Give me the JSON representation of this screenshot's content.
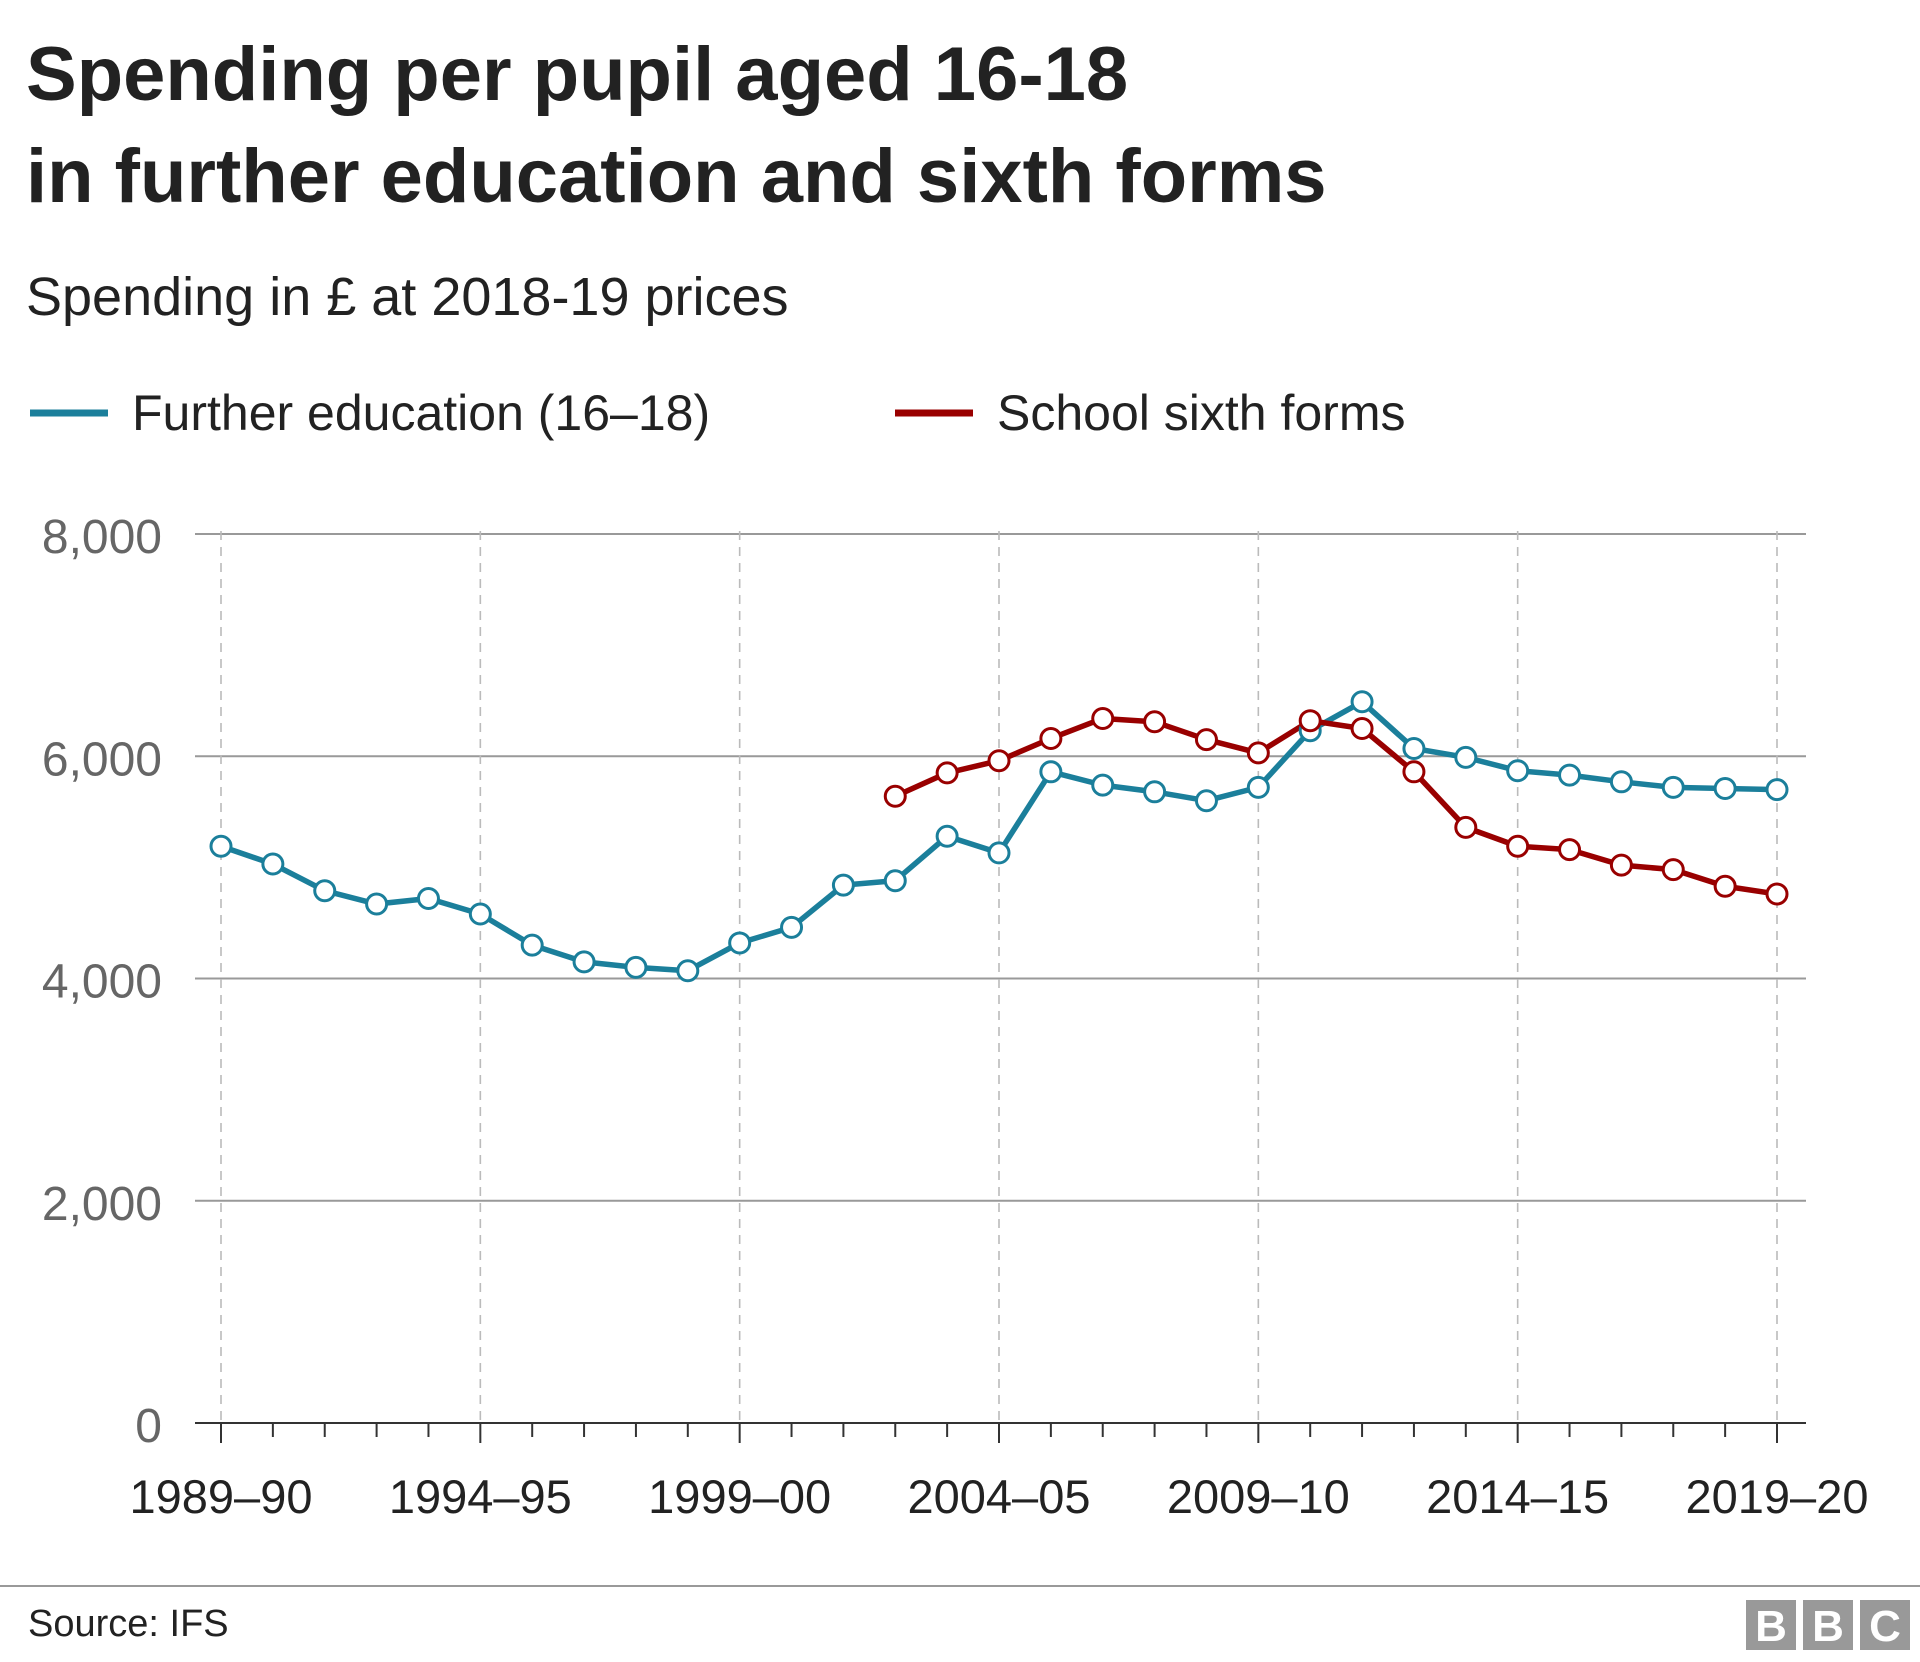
{
  "chart_data": {
    "type": "line",
    "title_lines": [
      "Spending per pupil aged 16-18",
      "in further education and sixth forms"
    ],
    "subtitle": "Spending in £ at 2018-19 prices",
    "x_tick_labels": [
      "1989–90",
      "1994–95",
      "1999–00",
      "2004–05",
      "2009–10",
      "2014–15",
      "2019–20"
    ],
    "y_tick_labels": [
      "0",
      "2,000",
      "4,000",
      "6,000",
      "8,000"
    ],
    "y_ticks": [
      0,
      2000,
      4000,
      6000,
      8000
    ],
    "ylim": [
      0,
      8000
    ],
    "x_start_year": 1989,
    "x_end_year": 2019,
    "grid": "horizontal",
    "legend_position": "top-left",
    "series": [
      {
        "name": "Further education (16–18)",
        "color": "#1b7f9b",
        "points": [
          {
            "year": 1989,
            "value": 5190
          },
          {
            "year": 1990,
            "value": 5030
          },
          {
            "year": 1991,
            "value": 4790
          },
          {
            "year": 1992,
            "value": 4670
          },
          {
            "year": 1993,
            "value": 4720
          },
          {
            "year": 1994,
            "value": 4580
          },
          {
            "year": 1995,
            "value": 4300
          },
          {
            "year": 1996,
            "value": 4150
          },
          {
            "year": 1997,
            "value": 4100
          },
          {
            "year": 1998,
            "value": 4070
          },
          {
            "year": 1999,
            "value": 4320
          },
          {
            "year": 2000,
            "value": 4460
          },
          {
            "year": 2001,
            "value": 4840
          },
          {
            "year": 2002,
            "value": 4880
          },
          {
            "year": 2003,
            "value": 5280
          },
          {
            "year": 2004,
            "value": 5130
          },
          {
            "year": 2005,
            "value": 5860
          },
          {
            "year": 2006,
            "value": 5740
          },
          {
            "year": 2007,
            "value": 5680
          },
          {
            "year": 2008,
            "value": 5600
          },
          {
            "year": 2009,
            "value": 5720
          },
          {
            "year": 2010,
            "value": 6230
          },
          {
            "year": 2011,
            "value": 6490
          },
          {
            "year": 2012,
            "value": 6070
          },
          {
            "year": 2013,
            "value": 5990
          },
          {
            "year": 2014,
            "value": 5870
          },
          {
            "year": 2015,
            "value": 5830
          },
          {
            "year": 2016,
            "value": 5770
          },
          {
            "year": 2017,
            "value": 5720
          },
          {
            "year": 2018,
            "value": 5710
          },
          {
            "year": 2019,
            "value": 5700
          }
        ]
      },
      {
        "name": "School sixth forms",
        "color": "#990000",
        "points": [
          {
            "year": 2002,
            "value": 5640
          },
          {
            "year": 2003,
            "value": 5850
          },
          {
            "year": 2004,
            "value": 5960
          },
          {
            "year": 2005,
            "value": 6160
          },
          {
            "year": 2006,
            "value": 6340
          },
          {
            "year": 2007,
            "value": 6310
          },
          {
            "year": 2008,
            "value": 6150
          },
          {
            "year": 2009,
            "value": 6030
          },
          {
            "year": 2010,
            "value": 6320
          },
          {
            "year": 2011,
            "value": 6250
          },
          {
            "year": 2012,
            "value": 5860
          },
          {
            "year": 2013,
            "value": 5360
          },
          {
            "year": 2014,
            "value": 5190
          },
          {
            "year": 2015,
            "value": 5160
          },
          {
            "year": 2016,
            "value": 5020
          },
          {
            "year": 2017,
            "value": 4980
          },
          {
            "year": 2018,
            "value": 4830
          },
          {
            "year": 2019,
            "value": 4760
          }
        ]
      }
    ]
  },
  "footer": {
    "source": "Source: IFS",
    "logo_letters": [
      "B",
      "B",
      "C"
    ],
    "logo_color": "#999999"
  }
}
